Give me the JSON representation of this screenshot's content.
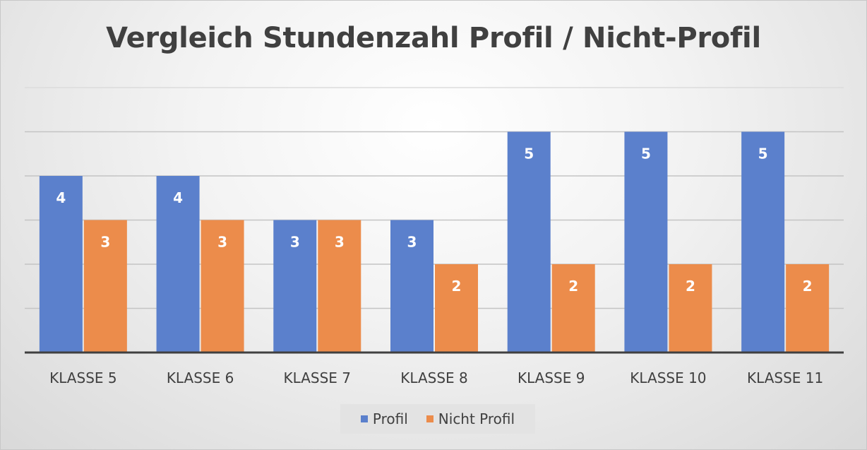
{
  "chart_data": {
    "type": "bar",
    "title": "Vergleich Stundenzahl Profil / Nicht-Profil",
    "categories": [
      "KLASSE 5",
      "KLASSE 6",
      "KLASSE 7",
      "KLASSE 8",
      "KLASSE 9",
      "KLASSE 10",
      "KLASSE 11"
    ],
    "series": [
      {
        "name": "Profil",
        "values": [
          4,
          4,
          3,
          3,
          5,
          5,
          5
        ],
        "color": "#5b80cc"
      },
      {
        "name": "Nicht Profil",
        "values": [
          3,
          3,
          3,
          2,
          2,
          2,
          2
        ],
        "color": "#ec8c4b"
      }
    ],
    "ylim": [
      0,
      6
    ],
    "grid": true,
    "y_tick_labels_shown": false,
    "data_labels": true,
    "legend_position": "bottom"
  },
  "legend": {
    "profil_label": "Profil",
    "nicht_profil_label": "Nicht Profil"
  }
}
